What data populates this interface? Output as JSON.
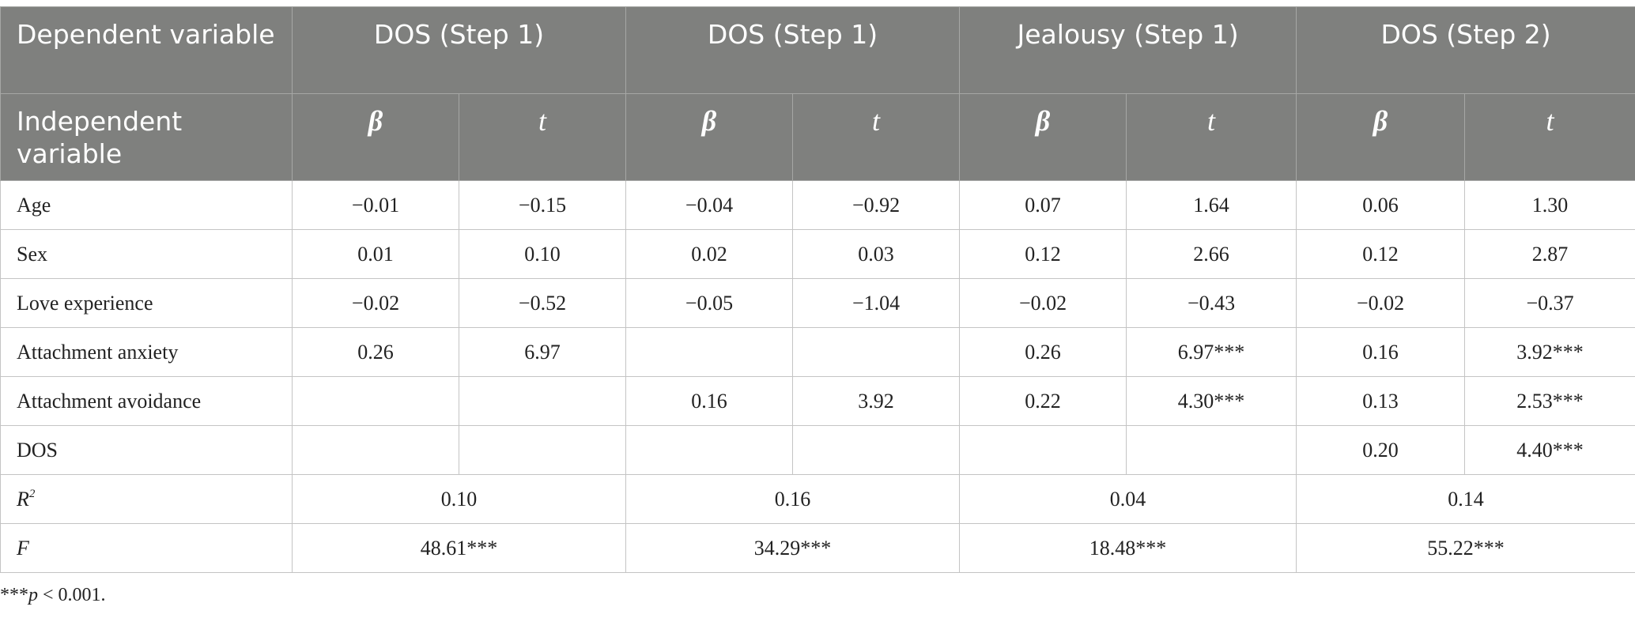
{
  "header": {
    "dependent_label": "Dependent variable",
    "independent_label": "Independent variable",
    "groups": [
      "DOS (Step 1)",
      "DOS (Step 1)",
      "Jealousy (Step 1)",
      "DOS (Step 2)"
    ],
    "beta_symbol": "β",
    "t_symbol": "t"
  },
  "rows": [
    {
      "label": "Age",
      "cells": [
        "−0.01",
        "−0.15",
        "−0.04",
        "−0.92",
        "0.07",
        "1.64",
        "0.06",
        "1.30"
      ]
    },
    {
      "label": "Sex",
      "cells": [
        "0.01",
        "0.10",
        "0.02",
        "0.03",
        "0.12",
        "2.66",
        "0.12",
        "2.87"
      ]
    },
    {
      "label": "Love experience",
      "cells": [
        "−0.02",
        "−0.52",
        "−0.05",
        "−1.04",
        "−0.02",
        "−0.43",
        "−0.02",
        "−0.37"
      ]
    },
    {
      "label": "Attachment anxiety",
      "cells": [
        "0.26",
        "6.97",
        "",
        "",
        "0.26",
        "6.97***",
        "0.16",
        "3.92***"
      ]
    },
    {
      "label": "Attachment avoidance",
      "cells": [
        "",
        "",
        "0.16",
        "3.92",
        "0.22",
        "4.30***",
        "0.13",
        "2.53***"
      ]
    },
    {
      "label": "DOS",
      "cells": [
        "",
        "",
        "",
        "",
        "",
        "",
        "0.20",
        "4.40***"
      ]
    }
  ],
  "r2_row": {
    "label": "R",
    "label_sup": "2",
    "values": [
      "0.10",
      "0.16",
      "0.04",
      "0.14"
    ]
  },
  "f_row": {
    "label": "F",
    "values": [
      "48.61***",
      "34.29***",
      "18.48***",
      "55.22***"
    ]
  },
  "note": {
    "stars": "***",
    "p": "p",
    "rest": " < 0.001."
  }
}
